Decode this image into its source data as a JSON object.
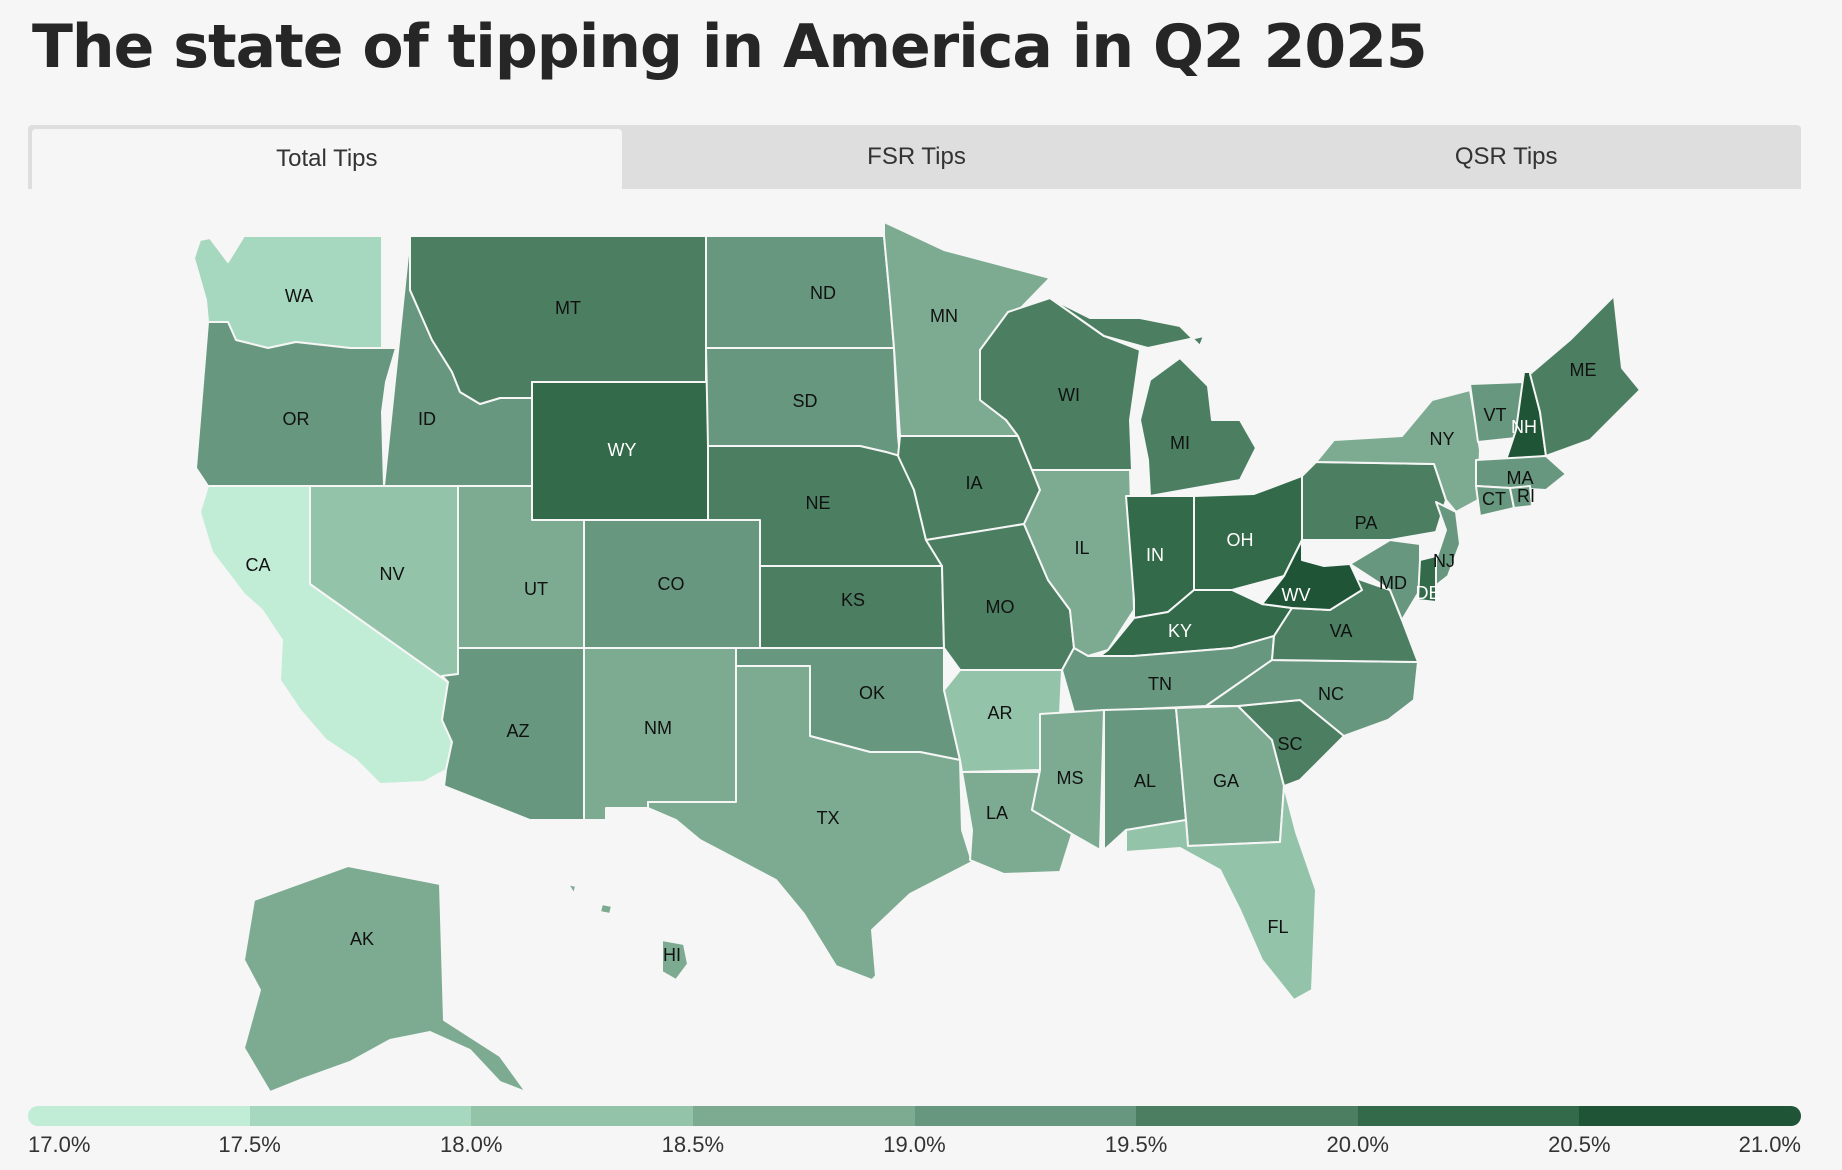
{
  "title": "The state of tipping in America in Q2 2025",
  "tabs": [
    {
      "label": "Total Tips",
      "active": true
    },
    {
      "label": "FSR Tips",
      "active": false
    },
    {
      "label": "QSR Tips",
      "active": false
    }
  ],
  "legend": {
    "labels": [
      "17.0%",
      "17.5%",
      "18.0%",
      "18.5%",
      "19.0%",
      "19.5%",
      "20.0%",
      "20.5%",
      "21.0%"
    ],
    "colors": [
      "#c1ecd6",
      "#a6d7bf",
      "#93c3a9",
      "#7dab91",
      "#67977e",
      "#4c7f62",
      "#336a4a",
      "#1f5536"
    ]
  },
  "states": {
    "WA": {
      "label": "WA",
      "level": 1
    },
    "OR": {
      "label": "OR",
      "level": 4
    },
    "CA": {
      "label": "CA",
      "level": 0
    },
    "ID": {
      "label": "ID",
      "level": 4
    },
    "NV": {
      "label": "NV",
      "level": 2
    },
    "MT": {
      "label": "MT",
      "level": 5
    },
    "WY": {
      "label": "WY",
      "level": 6
    },
    "UT": {
      "label": "UT",
      "level": 3
    },
    "AZ": {
      "label": "AZ",
      "level": 4
    },
    "CO": {
      "label": "CO",
      "level": 4
    },
    "NM": {
      "label": "NM",
      "level": 3
    },
    "ND": {
      "label": "ND",
      "level": 4
    },
    "SD": {
      "label": "SD",
      "level": 4
    },
    "NE": {
      "label": "NE",
      "level": 5
    },
    "KS": {
      "label": "KS",
      "level": 5
    },
    "OK": {
      "label": "OK",
      "level": 4
    },
    "TX": {
      "label": "TX",
      "level": 3
    },
    "MN": {
      "label": "MN",
      "level": 3
    },
    "IA": {
      "label": "IA",
      "level": 5
    },
    "MO": {
      "label": "MO",
      "level": 5
    },
    "AR": {
      "label": "AR",
      "level": 2
    },
    "LA": {
      "label": "LA",
      "level": 3
    },
    "WI": {
      "label": "WI",
      "level": 5
    },
    "IL": {
      "label": "IL",
      "level": 3
    },
    "MI": {
      "label": "MI",
      "level": 5
    },
    "IN": {
      "label": "IN",
      "level": 6
    },
    "OH": {
      "label": "OH",
      "level": 6
    },
    "KY": {
      "label": "KY",
      "level": 6
    },
    "TN": {
      "label": "TN",
      "level": 4
    },
    "MS": {
      "label": "MS",
      "level": 3
    },
    "AL": {
      "label": "AL",
      "level": 4
    },
    "GA": {
      "label": "GA",
      "level": 3
    },
    "FL": {
      "label": "FL",
      "level": 2
    },
    "SC": {
      "label": "SC",
      "level": 5
    },
    "NC": {
      "label": "NC",
      "level": 4
    },
    "VA": {
      "label": "VA",
      "level": 5
    },
    "WV": {
      "label": "WV",
      "level": 7
    },
    "PA": {
      "label": "PA",
      "level": 5
    },
    "NY": {
      "label": "NY",
      "level": 3
    },
    "NJ": {
      "label": "NJ",
      "level": 4
    },
    "MD": {
      "label": "MD",
      "level": 4
    },
    "DE": {
      "label": "DE",
      "level": 6
    },
    "VT": {
      "label": "VT",
      "level": 4
    },
    "NH": {
      "label": "NH",
      "level": 7
    },
    "ME": {
      "label": "ME",
      "level": 5
    },
    "MA": {
      "label": "MA",
      "level": 4
    },
    "CT": {
      "label": "CT",
      "level": 4
    },
    "RI": {
      "label": "RI",
      "level": 4
    },
    "AK": {
      "label": "AK",
      "level": 3
    },
    "HI": {
      "label": "HI",
      "level": 3
    }
  }
}
